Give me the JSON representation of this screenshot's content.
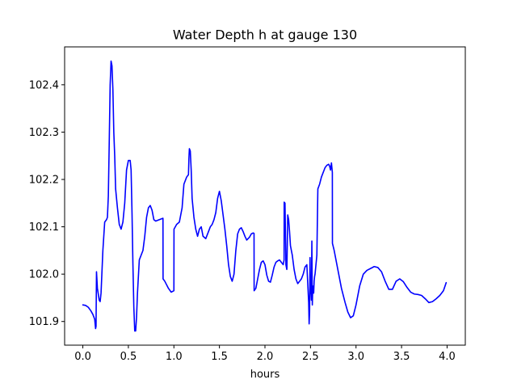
{
  "chart_data": {
    "type": "line",
    "title": "Water Depth h at gauge 130",
    "xlabel": "hours",
    "ylabel": "",
    "xlim": [
      -0.2,
      4.2
    ],
    "ylim": [
      101.85,
      102.48
    ],
    "grid": false,
    "x_ticks": [
      {
        "value": 0.0,
        "label": "0.0"
      },
      {
        "value": 0.5,
        "label": "0.5"
      },
      {
        "value": 1.0,
        "label": "1.0"
      },
      {
        "value": 1.5,
        "label": "1.5"
      },
      {
        "value": 2.0,
        "label": "2.0"
      },
      {
        "value": 2.5,
        "label": "2.5"
      },
      {
        "value": 3.0,
        "label": "3.0"
      },
      {
        "value": 3.5,
        "label": "3.5"
      },
      {
        "value": 4.0,
        "label": "4.0"
      }
    ],
    "y_ticks": [
      {
        "value": 101.9,
        "label": "101.9"
      },
      {
        "value": 102.0,
        "label": "102.0"
      },
      {
        "value": 102.1,
        "label": "102.1"
      },
      {
        "value": 102.2,
        "label": "102.2"
      },
      {
        "value": 102.3,
        "label": "102.3"
      },
      {
        "value": 102.4,
        "label": "102.4"
      }
    ],
    "series": [
      {
        "color": "#0000ff",
        "x": [
          0.0,
          0.03,
          0.06,
          0.09,
          0.11,
          0.13,
          0.14,
          0.145,
          0.15,
          0.16,
          0.18,
          0.19,
          0.2,
          0.22,
          0.24,
          0.26,
          0.27,
          0.28,
          0.29,
          0.3,
          0.31,
          0.32,
          0.33,
          0.34,
          0.35,
          0.36,
          0.38,
          0.4,
          0.42,
          0.44,
          0.46,
          0.48,
          0.5,
          0.52,
          0.53,
          0.54,
          0.55,
          0.56,
          0.57,
          0.58,
          0.59,
          0.6,
          0.62,
          0.64,
          0.66,
          0.68,
          0.7,
          0.72,
          0.74,
          0.76,
          0.78,
          0.8,
          0.84,
          0.88,
          0.881,
          0.9,
          0.94,
          0.97,
          1.0,
          1.001,
          1.03,
          1.06,
          1.09,
          1.11,
          1.14,
          1.16,
          1.165,
          1.17,
          1.18,
          1.19,
          1.2,
          1.22,
          1.24,
          1.26,
          1.28,
          1.3,
          1.32,
          1.35,
          1.38,
          1.4,
          1.42,
          1.44,
          1.46,
          1.48,
          1.5,
          1.52,
          1.54,
          1.56,
          1.58,
          1.6,
          1.62,
          1.64,
          1.66,
          1.68,
          1.7,
          1.72,
          1.74,
          1.76,
          1.78,
          1.8,
          1.83,
          1.85,
          1.87,
          1.88,
          1.881,
          1.9,
          1.92,
          1.94,
          1.96,
          1.98,
          2.0,
          2.02,
          2.04,
          2.06,
          2.08,
          2.1,
          2.12,
          2.14,
          2.16,
          2.18,
          2.2,
          2.21,
          2.211,
          2.22,
          2.23,
          2.24,
          2.241,
          2.25,
          2.26,
          2.27,
          2.28,
          2.3,
          2.32,
          2.34,
          2.36,
          2.38,
          2.4,
          2.42,
          2.44,
          2.46,
          2.48,
          2.485,
          2.49,
          2.495,
          2.5,
          2.505,
          2.51,
          2.515,
          2.52,
          2.525,
          2.53,
          2.535,
          2.54,
          2.545,
          2.55,
          2.57,
          2.58,
          2.581,
          2.6,
          2.62,
          2.64,
          2.66,
          2.68,
          2.7,
          2.71,
          2.72,
          2.73,
          2.74,
          2.741,
          2.76,
          2.8,
          2.84,
          2.88,
          2.91,
          2.94,
          2.97,
          3.0,
          3.04,
          3.08,
          3.12,
          3.16,
          3.2,
          3.24,
          3.28,
          3.32,
          3.36,
          3.4,
          3.44,
          3.48,
          3.52,
          3.56,
          3.6,
          3.64,
          3.68,
          3.72,
          3.76,
          3.8,
          3.84,
          3.88,
          3.92,
          3.96,
          3.99
        ],
        "y": [
          101.935,
          101.934,
          101.93,
          101.922,
          101.915,
          101.905,
          101.885,
          101.89,
          102.005,
          101.97,
          101.945,
          101.942,
          101.96,
          102.05,
          102.11,
          102.115,
          102.12,
          102.165,
          102.28,
          102.4,
          102.45,
          102.44,
          102.39,
          102.3,
          102.25,
          102.18,
          102.14,
          102.105,
          102.095,
          102.11,
          102.15,
          102.22,
          102.24,
          102.24,
          102.22,
          102.13,
          102.02,
          101.93,
          101.88,
          101.88,
          101.91,
          101.96,
          102.03,
          102.04,
          102.05,
          102.08,
          102.12,
          102.14,
          102.145,
          102.135,
          102.115,
          102.112,
          102.115,
          102.118,
          101.99,
          101.985,
          101.97,
          101.962,
          101.965,
          102.095,
          102.105,
          102.11,
          102.14,
          102.19,
          102.205,
          102.21,
          102.245,
          102.265,
          102.26,
          102.22,
          102.16,
          102.12,
          102.095,
          102.08,
          102.095,
          102.1,
          102.08,
          102.075,
          102.09,
          102.1,
          102.105,
          102.115,
          102.13,
          102.16,
          102.175,
          102.155,
          102.125,
          102.095,
          102.06,
          102.02,
          101.995,
          101.985,
          102.0,
          102.05,
          102.085,
          102.095,
          102.098,
          102.09,
          102.08,
          102.072,
          102.078,
          102.085,
          102.087,
          102.086,
          101.965,
          101.97,
          101.99,
          102.01,
          102.025,
          102.028,
          102.02,
          101.998,
          101.985,
          101.983,
          101.998,
          102.015,
          102.025,
          102.028,
          102.03,
          102.025,
          102.02,
          102.03,
          102.152,
          102.15,
          102.02,
          102.01,
          102.012,
          102.125,
          102.115,
          102.09,
          102.06,
          102.04,
          102.01,
          101.99,
          101.98,
          101.985,
          101.99,
          102.0,
          102.015,
          102.02,
          101.94,
          101.895,
          101.92,
          102.035,
          101.96,
          101.965,
          101.945,
          102.07,
          101.935,
          101.975,
          101.96,
          101.96,
          101.985,
          101.995,
          102.0,
          102.04,
          102.17,
          102.18,
          102.19,
          102.205,
          102.215,
          102.225,
          102.23,
          102.232,
          102.228,
          102.22,
          102.235,
          102.215,
          102.065,
          102.05,
          102.01,
          101.97,
          101.94,
          101.92,
          101.908,
          101.912,
          101.935,
          101.975,
          102.0,
          102.008,
          102.012,
          102.016,
          102.014,
          102.005,
          101.985,
          101.968,
          101.968,
          101.985,
          101.99,
          101.984,
          101.972,
          101.962,
          101.958,
          101.957,
          101.955,
          101.948,
          101.94,
          101.942,
          101.948,
          101.955,
          101.965,
          101.982
        ]
      }
    ]
  }
}
